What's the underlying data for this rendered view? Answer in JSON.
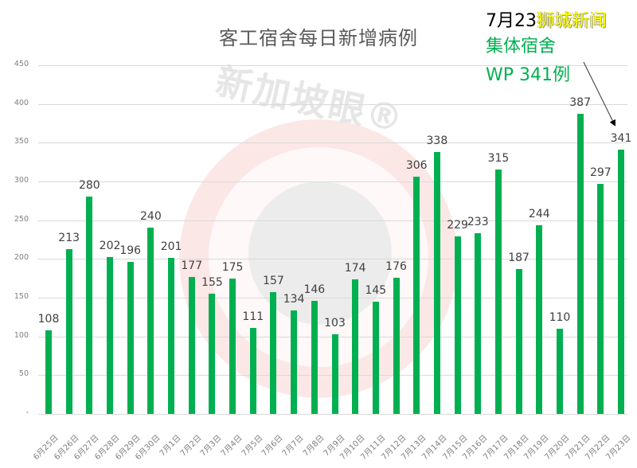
{
  "chart_data": {
    "type": "bar",
    "title": "客工宿舍每日新增病例",
    "xlabel": "",
    "ylabel": "",
    "ylim": [
      0,
      450
    ],
    "yticks": [
      "-",
      "50",
      "100",
      "150",
      "200",
      "250",
      "300",
      "350",
      "400",
      "450"
    ],
    "grid": true,
    "legend": null,
    "bar_color": "#00b050",
    "categories": [
      "6月25日",
      "6月26日",
      "6月27日",
      "6月28日",
      "6月29日",
      "6月30日",
      "7月1日",
      "7月2日",
      "7月3日",
      "7月4日",
      "7月5日",
      "7月6日",
      "7月7日",
      "7月8日",
      "7月9日",
      "7月10日",
      "7月11日",
      "7月12日",
      "7月13日",
      "7月14日",
      "7月15日",
      "7月16日",
      "7月17日",
      "7月18日",
      "7月19日",
      "7月20日",
      "7月21日",
      "7月22日",
      "7月23日"
    ],
    "values": [
      108,
      213,
      280,
      202,
      196,
      240,
      201,
      177,
      155,
      175,
      111,
      157,
      134,
      146,
      103,
      174,
      145,
      176,
      306,
      338,
      229,
      233,
      315,
      187,
      244,
      110,
      387,
      297,
      341
    ],
    "annotations": [
      {
        "text": "7月23",
        "color": "#000000"
      },
      {
        "text": "狮城新闻",
        "color": "#ffff00"
      },
      {
        "text": "集体宿舍",
        "color": "#00b050"
      },
      {
        "text": "WP 341例",
        "color": "#00b050",
        "points_to": "7月23日"
      }
    ]
  },
  "header": {
    "title": "客工宿舍每日新增病例"
  },
  "annotation": {
    "date": "7月23",
    "brand": "狮城新闻",
    "line2": "集体宿舍",
    "line3": "WP 341例"
  },
  "watermark": {
    "text": "新加坡眼®"
  }
}
